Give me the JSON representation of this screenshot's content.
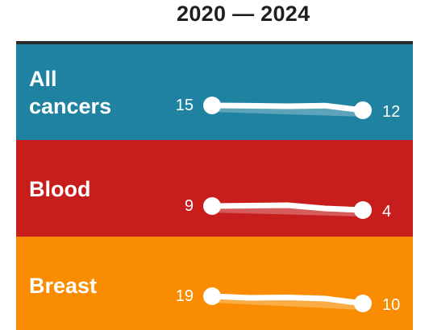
{
  "header": {
    "title": "2020 — 2024"
  },
  "chart_data": {
    "type": "line",
    "title": "2020 — 2024",
    "xlabel": "",
    "ylabel": "",
    "series": [
      {
        "name": "All cancers",
        "label_lines": [
          "All",
          "cancers"
        ],
        "color": "#1f82a1",
        "start_label": "15",
        "end_label": "12",
        "values": [
          15,
          14.8,
          14.5,
          14.9,
          12
        ]
      },
      {
        "name": "Blood",
        "label_lines": [
          "Blood"
        ],
        "color": "#c71d1d",
        "start_label": "9",
        "end_label": "4",
        "values": [
          9,
          9.5,
          10,
          6,
          4
        ]
      },
      {
        "name": "Breast",
        "label_lines": [
          "Breast"
        ],
        "color": "#f98c00",
        "start_label": "19",
        "end_label": "10",
        "values": [
          19,
          17,
          17.5,
          16,
          10
        ]
      }
    ]
  }
}
